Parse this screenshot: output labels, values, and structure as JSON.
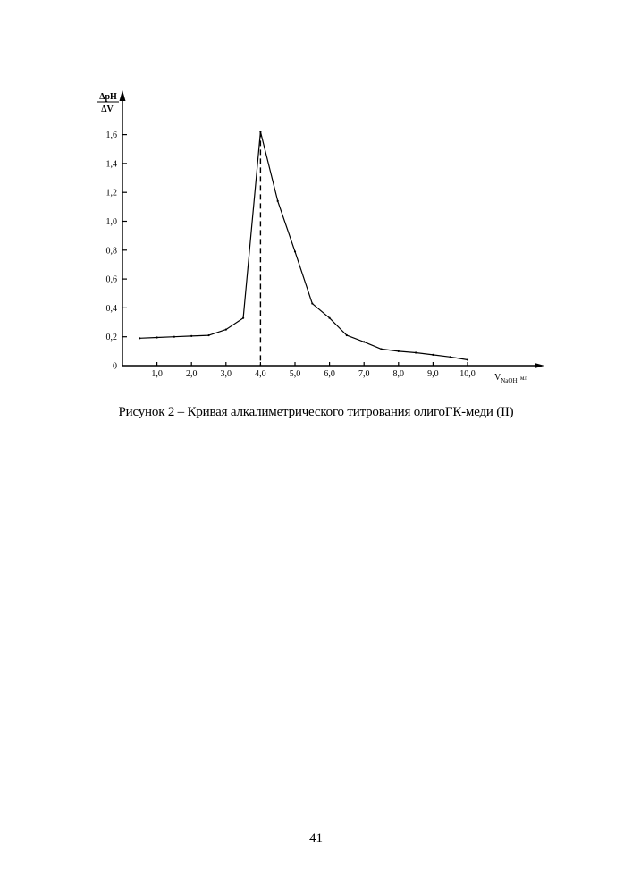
{
  "chart_data": {
    "type": "line",
    "ylabel_numerator": "ΔpH",
    "ylabel_denominator": "ΔV",
    "xlabel_main": "V",
    "xlabel_sub": "NaOH",
    "xlabel_unit": ", мл",
    "xlim": [
      0,
      10.4
    ],
    "ylim": [
      0,
      1.6
    ],
    "xticks": [
      1,
      2,
      3,
      4,
      5,
      6,
      7,
      8,
      9,
      10
    ],
    "xtick_labels": [
      "1,0",
      "2,0",
      "3,0",
      "4,0",
      "5,0",
      "6,0",
      "7,0",
      "8,0",
      "9,0",
      "10,0"
    ],
    "yticks": [
      0,
      0.2,
      0.4,
      0.6,
      0.8,
      1.0,
      1.2,
      1.4,
      1.6
    ],
    "ytick_labels": [
      "0",
      "0,2",
      "0,4",
      "0,6",
      "0,8",
      "1,0",
      "1,2",
      "1,4",
      "1,6"
    ],
    "series": [
      {
        "x": [
          0.5,
          1.0,
          1.5,
          2.0,
          2.5,
          3.0,
          3.5,
          4.0,
          4.5,
          5.0,
          5.5,
          6.0,
          6.5,
          7.0,
          7.5,
          8.0,
          8.5,
          9.0,
          9.5,
          10.0
        ],
        "y": [
          0.19,
          0.195,
          0.2,
          0.205,
          0.21,
          0.25,
          0.33,
          1.62,
          1.14,
          0.79,
          0.43,
          0.33,
          0.21,
          0.165,
          0.115,
          0.1,
          0.09,
          0.075,
          0.06,
          0.04
        ]
      }
    ],
    "vline": {
      "x": 4.0,
      "style": "dashed"
    },
    "grid": false,
    "legend": "none"
  },
  "caption": "Рисунок 2 – Кривая алкалиметрического титрования олигоГК-меди (II)",
  "page_number": "41"
}
